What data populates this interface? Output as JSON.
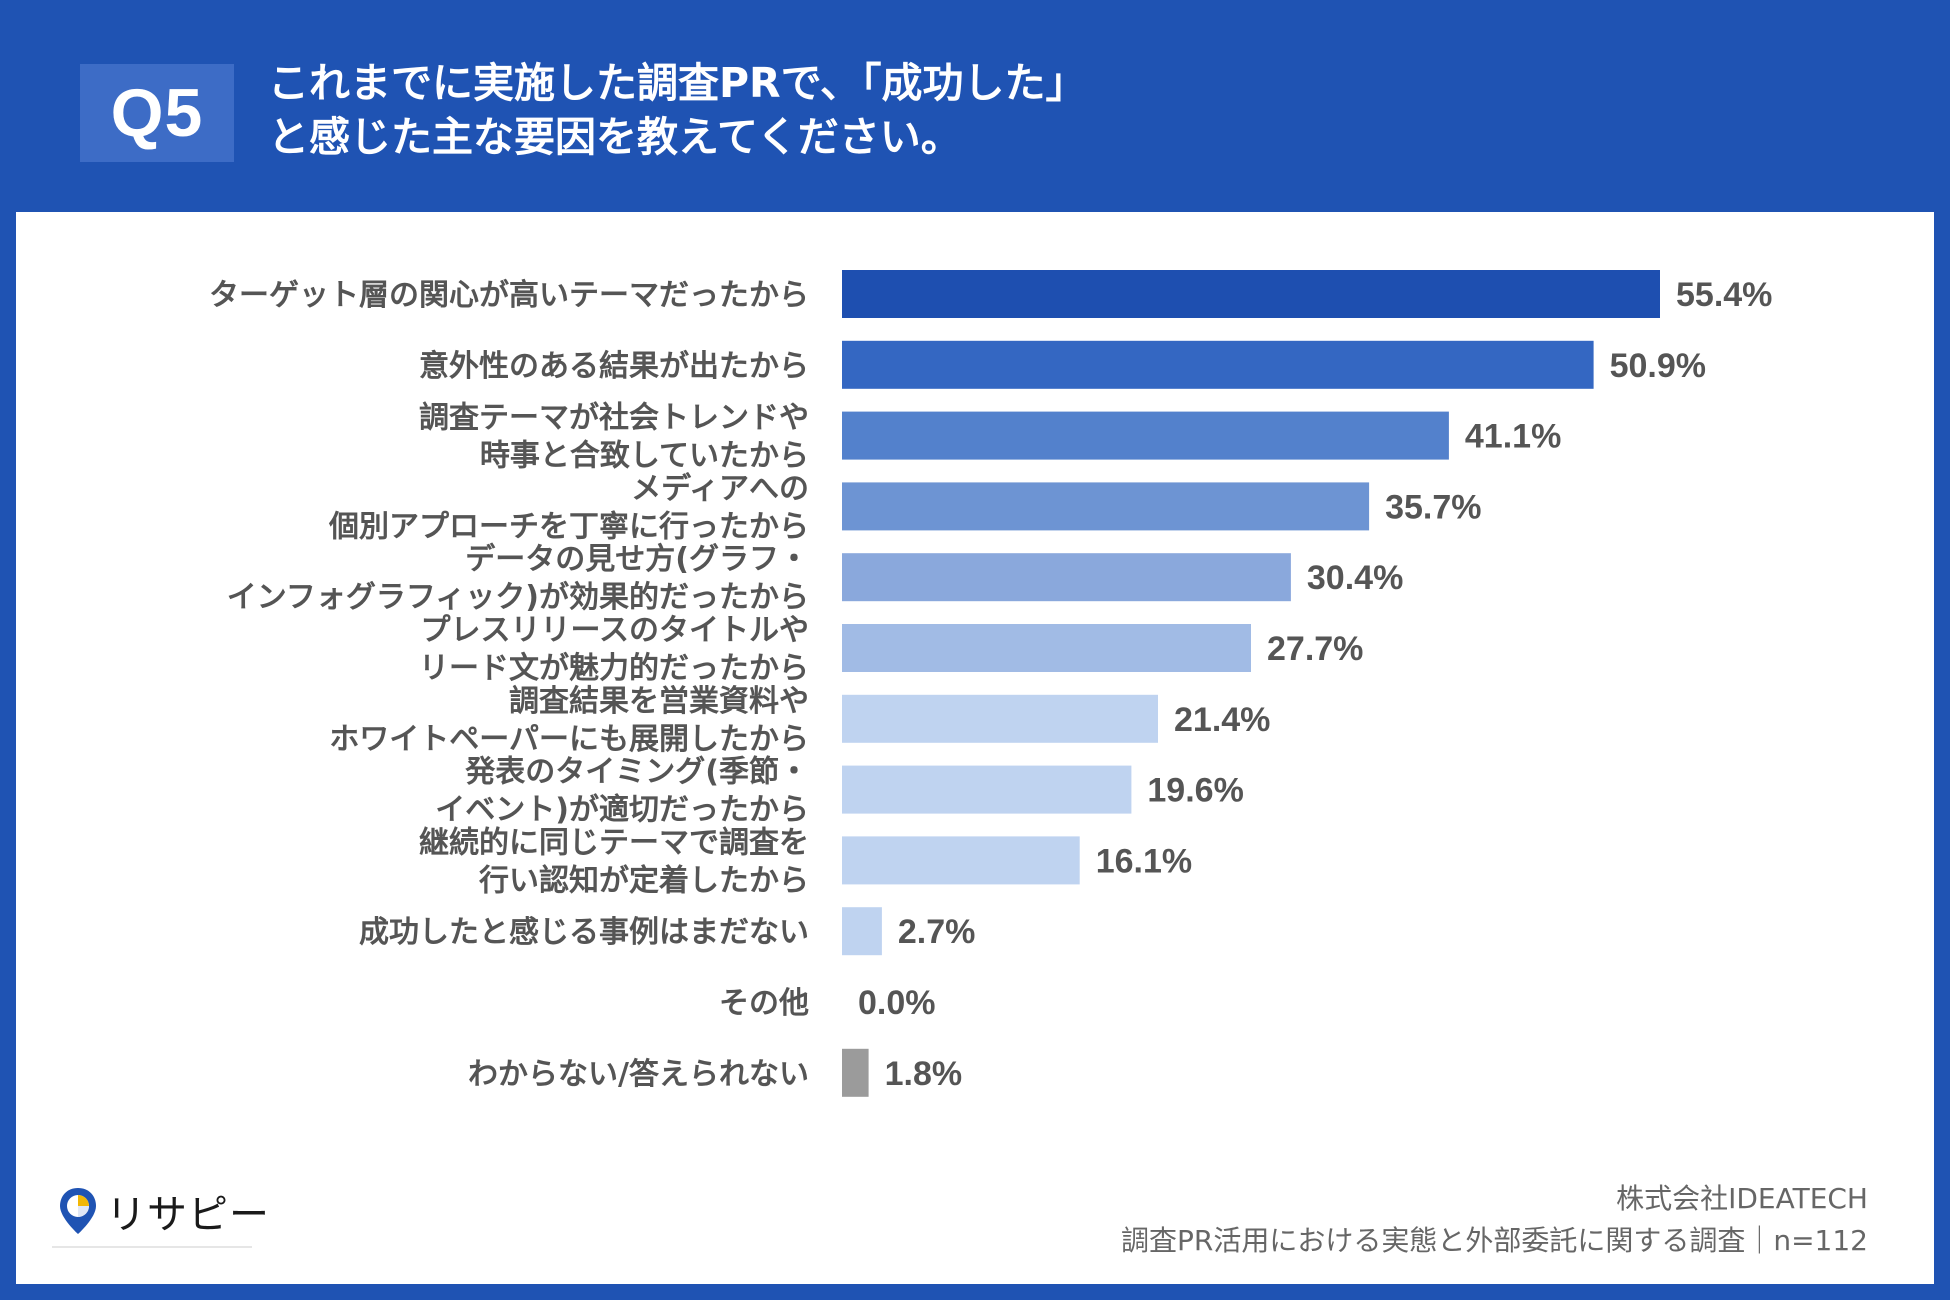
{
  "header": {
    "badge": "Q5",
    "title_line1": "これまでに実施した調査PRで、「成功した」",
    "title_line2": "と感じた主な要因を教えてください。"
  },
  "colors": {
    "background": "#1f53b3",
    "badge": "#3d6cc6",
    "gray_bar": "#9b9b9b"
  },
  "chart_data": {
    "type": "bar",
    "orientation": "horizontal",
    "title": "これまでに実施した調査PRで、「成功した」と感じた主な要因を教えてください。",
    "xlim": [
      0,
      60
    ],
    "categories": [
      [
        "ターゲット層の関心が高いテーマだったから"
      ],
      [
        "意外性のある結果が出たから"
      ],
      [
        "調査テーマが社会トレンドや",
        "時事と合致していたから"
      ],
      [
        "メディアへの",
        "個別アプローチを丁寧に行ったから"
      ],
      [
        "データの見せ方(グラフ・",
        "インフォグラフィック)が効果的だったから"
      ],
      [
        "プレスリリースのタイトルや",
        "リード文が魅力的だったから"
      ],
      [
        "調査結果を営業資料や",
        "ホワイトペーパーにも展開したから"
      ],
      [
        "発表のタイミング(季節・",
        "イベント)が適切だったから"
      ],
      [
        "継続的に同じテーマで調査を",
        "行い認知が定着したから"
      ],
      [
        "成功したと感じる事例はまだない"
      ],
      [
        "その他"
      ],
      [
        "わからない/答えられない"
      ]
    ],
    "values": [
      55.4,
      50.9,
      41.1,
      35.7,
      30.4,
      27.7,
      21.4,
      19.6,
      16.1,
      2.7,
      0.0,
      1.8
    ],
    "value_labels": [
      "55.4%",
      "50.9%",
      "41.1%",
      "35.7%",
      "30.4%",
      "27.7%",
      "21.4%",
      "19.6%",
      "16.1%",
      "2.7%",
      "0.0%",
      "1.8%"
    ],
    "bar_colors": [
      "#1e4fb0",
      "#3467c2",
      "#5381cc",
      "#6d94d3",
      "#8aa8dc",
      "#a1bbe5",
      "#bfd3f0",
      "#bfd3f0",
      "#bfd3f0",
      "#bfd3f0",
      "#bfd3f0",
      "#9b9b9b"
    ]
  },
  "footer": {
    "logo_text": "リサピー",
    "company": "株式会社IDEATECH",
    "survey": "調査PR活用における実態と外部委託に関する調査｜n=112"
  }
}
